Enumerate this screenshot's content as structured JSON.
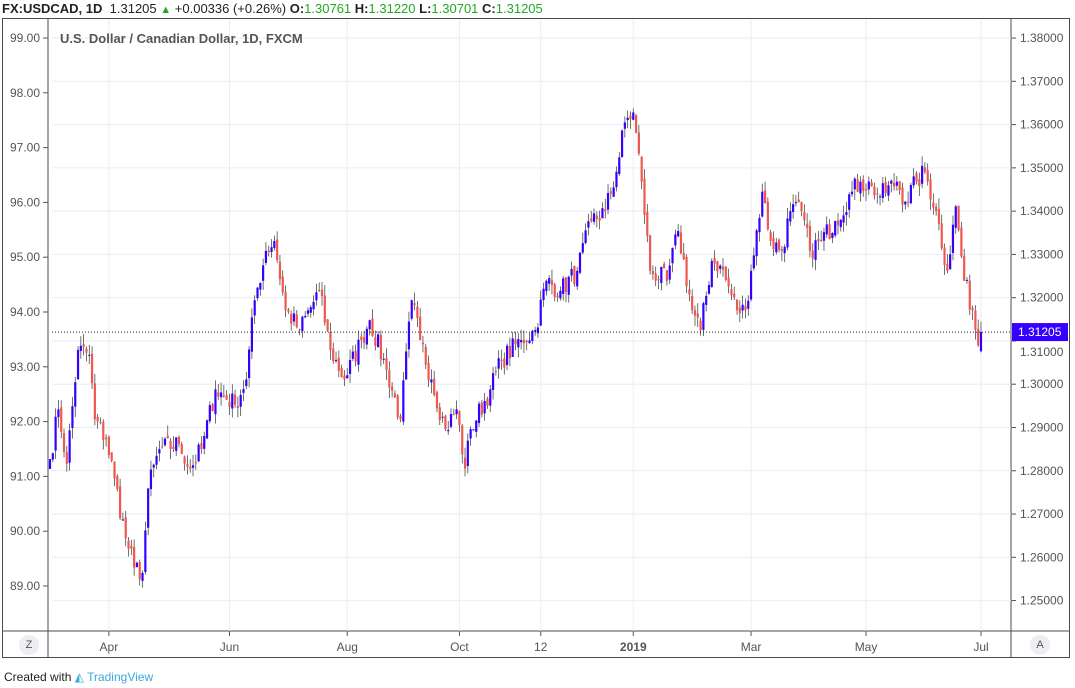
{
  "header": {
    "symbol": "FX:USDCAD, 1D",
    "last": "1.31205",
    "arrow": "▲",
    "change": "+0.00336 (+0.26%)",
    "o_label": "O:",
    "o": "1.30761",
    "h_label": "H:",
    "h": "1.31220",
    "l_label": "L:",
    "l": "1.30701",
    "c_label": "C:",
    "c": "1.31205"
  },
  "chart_title": "U.S. Dollar / Canadian Dollar, 1D, FXCM",
  "footer": {
    "created": "Created with",
    "brand": "TradingView"
  },
  "buttons": {
    "z": "Z",
    "a": "A"
  },
  "colors": {
    "up": "#3500ff",
    "down": "#f0584f",
    "grid": "#e6eef6",
    "wick": "#333"
  },
  "chart_data": {
    "type": "candlestick",
    "title": "U.S. Dollar / Canadian Dollar, 1D, FXCM",
    "right_axis": {
      "ticks": [
        "1.38000",
        "1.37000",
        "1.36000",
        "1.35000",
        "1.34000",
        "1.33000",
        "1.32000",
        "1.31000",
        "1.30000",
        "1.29000",
        "1.28000",
        "1.27000",
        "1.26000",
        "1.25000"
      ],
      "range": [
        1.2432,
        1.3844
      ]
    },
    "left_axis": {
      "ticks": [
        "99.00",
        "98.00",
        "97.00",
        "96.00",
        "95.00",
        "94.00",
        "93.00",
        "92.00",
        "91.00",
        "90.00",
        "89.00"
      ]
    },
    "x_ticks": [
      {
        "label": "Apr",
        "bar": 21
      },
      {
        "label": "Jun",
        "bar": 64
      },
      {
        "label": "Aug",
        "bar": 106
      },
      {
        "label": "Oct",
        "bar": 146
      },
      {
        "label": "12",
        "bar": 175
      },
      {
        "label": "2019",
        "bar": 208
      },
      {
        "label": "Mar",
        "bar": 250
      },
      {
        "label": "May",
        "bar": 291
      },
      {
        "label": "Jul",
        "bar": 332
      }
    ],
    "bars": 333,
    "last_price": "1.31205",
    "close_waypoints": [
      [
        0,
        1.2827
      ],
      [
        3,
        1.2942
      ],
      [
        6,
        1.2816
      ],
      [
        10,
        1.3079
      ],
      [
        14,
        1.3068
      ],
      [
        16,
        1.2919
      ],
      [
        20,
        1.2873
      ],
      [
        23,
        1.2782
      ],
      [
        27,
        1.2644
      ],
      [
        30,
        1.2576
      ],
      [
        33,
        1.2564
      ],
      [
        35,
        1.2759
      ],
      [
        39,
        1.285
      ],
      [
        46,
        1.2862
      ],
      [
        50,
        1.2805
      ],
      [
        54,
        1.285
      ],
      [
        59,
        1.2988
      ],
      [
        66,
        1.2953
      ],
      [
        70,
        1.3011
      ],
      [
        73,
        1.3194
      ],
      [
        77,
        1.3308
      ],
      [
        80,
        1.3331
      ],
      [
        84,
        1.3171
      ],
      [
        89,
        1.3125
      ],
      [
        96,
        1.3216
      ],
      [
        100,
        1.3079
      ],
      [
        105,
        1.3011
      ],
      [
        111,
        1.3102
      ],
      [
        114,
        1.3148
      ],
      [
        120,
        1.3033
      ],
      [
        125,
        1.2919
      ],
      [
        129,
        1.3194
      ],
      [
        132,
        1.3102
      ],
      [
        136,
        1.3011
      ],
      [
        141,
        1.2896
      ],
      [
        145,
        1.2942
      ],
      [
        148,
        1.2805
      ],
      [
        150,
        1.2896
      ],
      [
        157,
        1.2988
      ],
      [
        161,
        1.3056
      ],
      [
        168,
        1.3102
      ],
      [
        173,
        1.3125
      ],
      [
        177,
        1.3239
      ],
      [
        182,
        1.3216
      ],
      [
        188,
        1.3262
      ],
      [
        193,
        1.3377
      ],
      [
        198,
        1.34
      ],
      [
        202,
        1.3491
      ],
      [
        205,
        1.3605
      ],
      [
        208,
        1.3628
      ],
      [
        211,
        1.3468
      ],
      [
        214,
        1.3262
      ],
      [
        220,
        1.3239
      ],
      [
        224,
        1.3354
      ],
      [
        229,
        1.3171
      ],
      [
        232,
        1.3125
      ],
      [
        236,
        1.3285
      ],
      [
        239,
        1.3274
      ],
      [
        245,
        1.3171
      ],
      [
        248,
        1.3171
      ],
      [
        250,
        1.3262
      ],
      [
        254,
        1.3445
      ],
      [
        257,
        1.3331
      ],
      [
        261,
        1.3308
      ],
      [
        264,
        1.34
      ],
      [
        268,
        1.34
      ],
      [
        271,
        1.3308
      ],
      [
        275,
        1.3331
      ],
      [
        280,
        1.3377
      ],
      [
        286,
        1.3445
      ],
      [
        289,
        1.3468
      ],
      [
        293,
        1.3457
      ],
      [
        296,
        1.3434
      ],
      [
        302,
        1.3468
      ],
      [
        305,
        1.3422
      ],
      [
        309,
        1.3468
      ],
      [
        312,
        1.3491
      ],
      [
        316,
        1.34
      ],
      [
        320,
        1.3262
      ],
      [
        323,
        1.3411
      ],
      [
        326,
        1.3239
      ],
      [
        329,
        1.3171
      ],
      [
        331,
        1.309
      ],
      [
        332,
        1.31205
      ]
    ]
  }
}
